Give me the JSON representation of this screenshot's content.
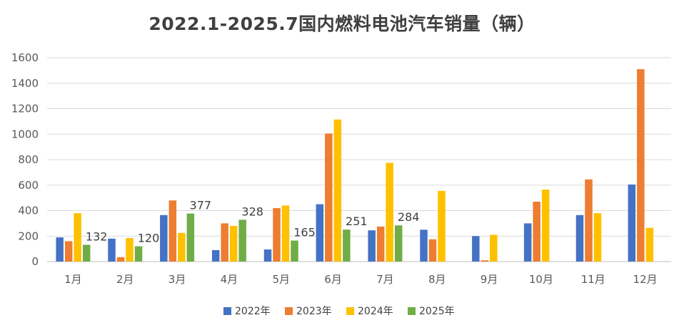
{
  "chart_data": {
    "type": "bar",
    "title": "2022.1-2025.7国内燃料电池汽车销量（辆）",
    "categories": [
      "1月",
      "2月",
      "3月",
      "4月",
      "5月",
      "6月",
      "7月",
      "8月",
      "9月",
      "10月",
      "11月",
      "12月"
    ],
    "series": [
      {
        "name": "2022年",
        "color": "#4472C4",
        "values": [
          190,
          180,
          365,
          90,
          95,
          450,
          245,
          250,
          200,
          300,
          365,
          605
        ]
      },
      {
        "name": "2023年",
        "color": "#ED7D31",
        "values": [
          160,
          35,
          480,
          300,
          420,
          1005,
          275,
          175,
          10,
          470,
          645,
          1510
        ]
      },
      {
        "name": "2024年",
        "color": "#FFC000",
        "values": [
          380,
          185,
          225,
          280,
          440,
          1115,
          775,
          555,
          210,
          565,
          380,
          265
        ]
      },
      {
        "name": "2025年",
        "color": "#70AD47",
        "values": [
          132,
          120,
          377,
          328,
          165,
          251,
          284,
          null,
          null,
          null,
          null,
          null
        ]
      }
    ],
    "data_labels": {
      "series": "2025年",
      "values": [
        "132",
        "120",
        "377",
        "328",
        "165",
        "251",
        "284"
      ]
    },
    "ylim": [
      0,
      1600
    ],
    "yticks": [
      "0",
      "200",
      "400",
      "600",
      "800",
      "1000",
      "1200",
      "1400",
      "1600"
    ],
    "grid": true,
    "legend_position": "bottom"
  }
}
